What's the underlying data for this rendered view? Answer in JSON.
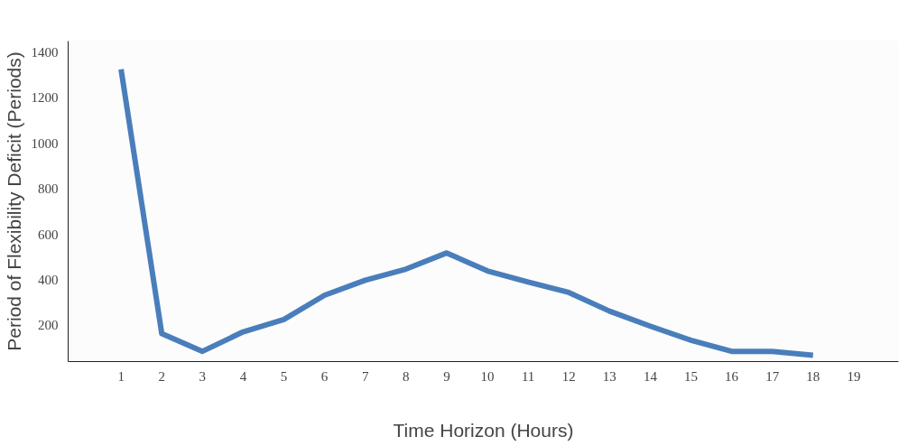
{
  "chart_data": {
    "type": "line",
    "xlabel": "Time Horizon (Hours)",
    "ylabel": "Period of Flexibility Deficit (Periods)",
    "x": [
      1,
      2,
      3,
      4,
      5,
      6,
      7,
      8,
      9,
      10,
      11,
      12,
      13,
      14,
      15,
      16,
      17,
      18
    ],
    "series": [
      {
        "color": "#4a7ebb",
        "values": [
          1326,
          163,
          85,
          171,
          225,
          332,
          398,
          447,
          518,
          439,
          390,
          344,
          262,
          196,
          134,
          85,
          85,
          68
        ]
      }
    ],
    "xlim": [
      -0.3,
      20.1
    ],
    "xticks": [
      1,
      2,
      3,
      4,
      5,
      6,
      7,
      8,
      9,
      10,
      11,
      12,
      13,
      14,
      15,
      16,
      17,
      18,
      19
    ],
    "ylim": [
      40,
      1450
    ],
    "yticks": [
      200,
      400,
      600,
      800,
      1000,
      1200,
      1400
    ],
    "grid": false,
    "marker": "none",
    "line_style": "solid"
  }
}
